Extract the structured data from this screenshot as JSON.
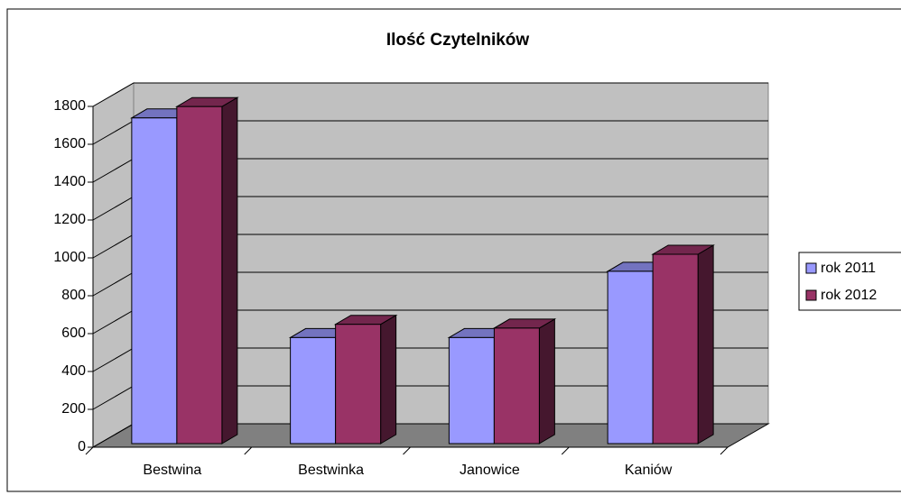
{
  "chart_data": {
    "type": "bar3d",
    "title": "Ilość Czytelników",
    "categories": [
      "Bestwina",
      "Bestwinka",
      "Janowice",
      "Kaniów"
    ],
    "series": [
      {
        "name": "rok 2011",
        "color": "#9999ff",
        "values": [
          1720,
          560,
          560,
          910
        ]
      },
      {
        "name": "rok 2012",
        "color": "#993366",
        "values": [
          1780,
          630,
          610,
          1000
        ]
      }
    ],
    "ylim": [
      0,
      1800
    ],
    "yticks": [
      0,
      200,
      400,
      600,
      800,
      1000,
      1200,
      1400,
      1600,
      1800
    ],
    "grid": true,
    "legend": "right"
  }
}
